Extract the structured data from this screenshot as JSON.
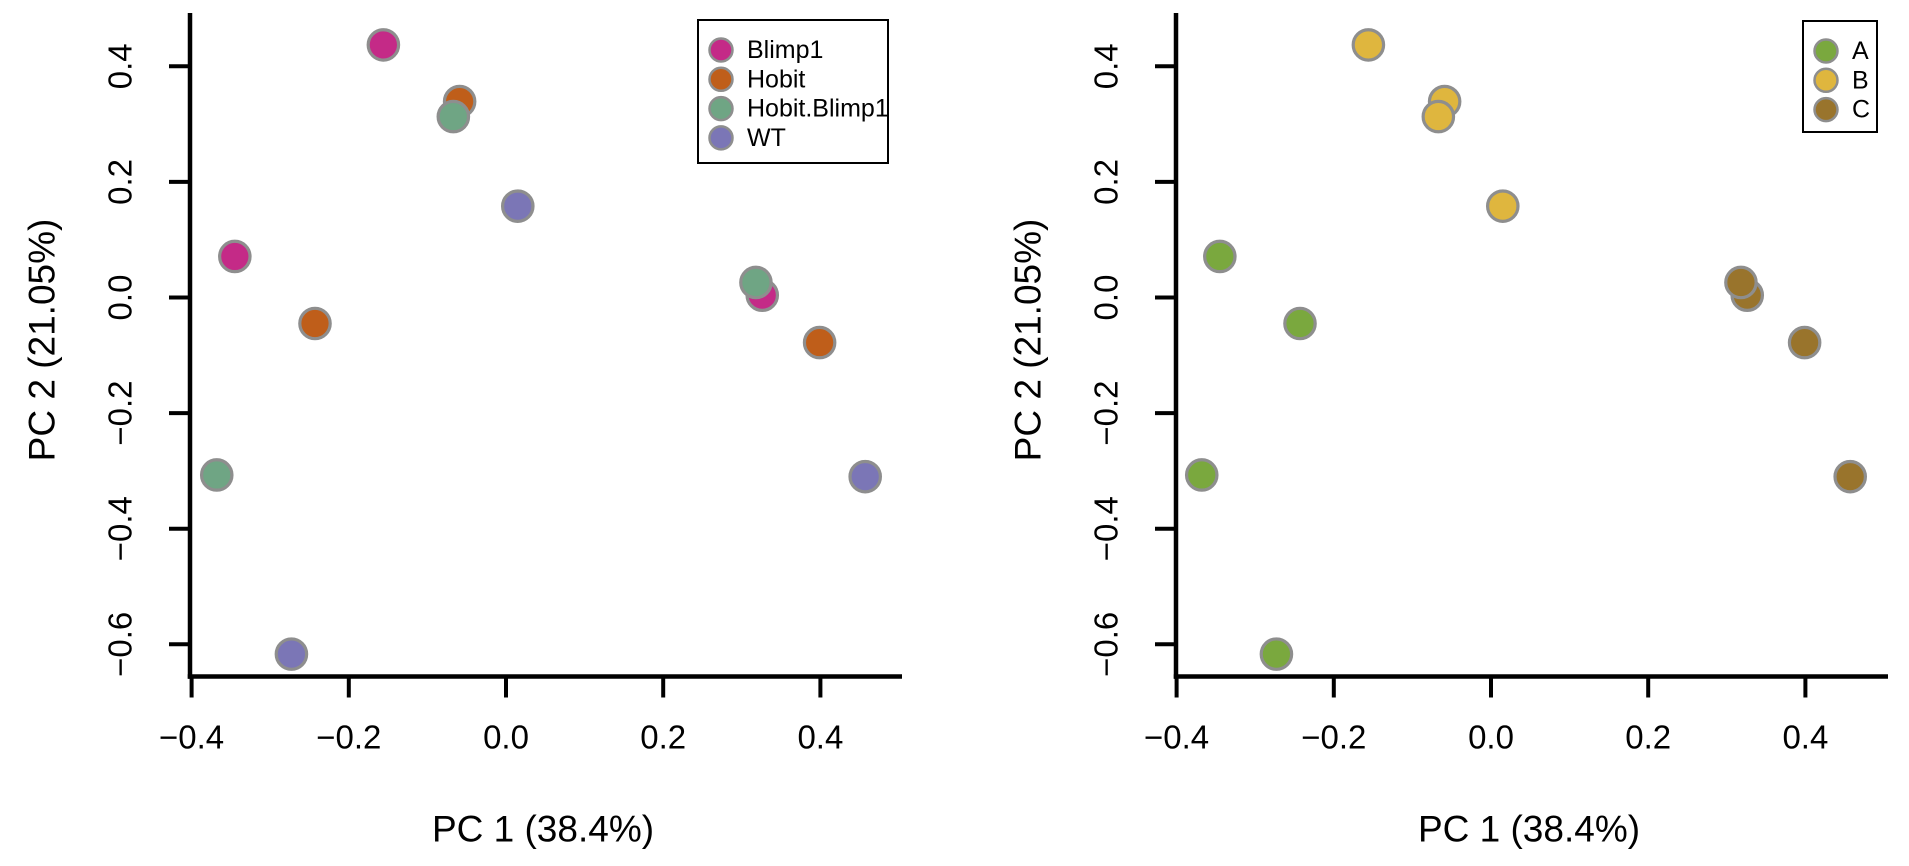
{
  "figure": {
    "background": "#ffffff",
    "axis_color": "#000000",
    "point_stroke_color": "#8E8E8E",
    "legend_border_color": "#000000"
  },
  "chart_data": [
    {
      "type": "scatter",
      "panel": "left",
      "title": "",
      "xlabel": "PC 1 (38.4%)",
      "ylabel": "PC 2 (21.05%)",
      "xlim": [
        -0.402,
        0.496
      ],
      "ylim": [
        -0.659,
        0.479
      ],
      "xticks": [
        -0.4,
        -0.2,
        0.0,
        0.2,
        0.4
      ],
      "yticks": [
        0.4,
        0.2,
        0.0,
        -0.2,
        -0.4,
        -0.6
      ],
      "grid": false,
      "legend": {
        "position": "top-right",
        "entries": [
          {
            "label": "Blimp1",
            "color": "#C42A87"
          },
          {
            "label": "Hobit",
            "color": "#BF5E1A"
          },
          {
            "label": "Hobit.Blimp1",
            "color": "#6FA584"
          },
          {
            "label": "WT",
            "color": "#7B76B6"
          }
        ]
      },
      "points": [
        {
          "x": -0.156,
          "y": 0.437,
          "group": "Blimp1"
        },
        {
          "x": -0.059,
          "y": 0.339,
          "group": "Hobit"
        },
        {
          "x": -0.067,
          "y": 0.313,
          "group": "Hobit.Blimp1"
        },
        {
          "x": 0.015,
          "y": 0.158,
          "group": "WT"
        },
        {
          "x": -0.345,
          "y": 0.071,
          "group": "Blimp1"
        },
        {
          "x": -0.243,
          "y": -0.045,
          "group": "Hobit"
        },
        {
          "x": 0.326,
          "y": 0.004,
          "group": "Blimp1"
        },
        {
          "x": 0.318,
          "y": 0.026,
          "group": "Hobit.Blimp1"
        },
        {
          "x": 0.399,
          "y": -0.078,
          "group": "Hobit"
        },
        {
          "x": -0.368,
          "y": -0.307,
          "group": "Hobit.Blimp1"
        },
        {
          "x": 0.457,
          "y": -0.31,
          "group": "WT"
        },
        {
          "x": -0.273,
          "y": -0.617,
          "group": "WT"
        }
      ]
    },
    {
      "type": "scatter",
      "panel": "right",
      "title": "",
      "xlabel": "PC 1 (38.4%)",
      "ylabel": "PC 2 (21.05%)",
      "xlim": [
        -0.402,
        0.496
      ],
      "ylim": [
        -0.659,
        0.479
      ],
      "xticks": [
        -0.4,
        -0.2,
        0.0,
        0.2,
        0.4
      ],
      "yticks": [
        0.4,
        0.2,
        0.0,
        -0.2,
        -0.4,
        -0.6
      ],
      "grid": false,
      "legend": {
        "position": "top-right",
        "entries": [
          {
            "label": "A",
            "color": "#7AA83E"
          },
          {
            "label": "B",
            "color": "#DFB63E"
          },
          {
            "label": "C",
            "color": "#99742C"
          }
        ]
      },
      "points": [
        {
          "x": -0.156,
          "y": 0.437,
          "group": "B"
        },
        {
          "x": -0.059,
          "y": 0.339,
          "group": "B"
        },
        {
          "x": -0.067,
          "y": 0.313,
          "group": "B"
        },
        {
          "x": 0.015,
          "y": 0.158,
          "group": "B"
        },
        {
          "x": -0.345,
          "y": 0.071,
          "group": "A"
        },
        {
          "x": -0.243,
          "y": -0.045,
          "group": "A"
        },
        {
          "x": 0.326,
          "y": 0.004,
          "group": "C"
        },
        {
          "x": 0.318,
          "y": 0.026,
          "group": "C"
        },
        {
          "x": 0.399,
          "y": -0.078,
          "group": "C"
        },
        {
          "x": -0.368,
          "y": -0.307,
          "group": "A"
        },
        {
          "x": 0.457,
          "y": -0.31,
          "group": "C"
        },
        {
          "x": -0.273,
          "y": -0.617,
          "group": "A"
        }
      ]
    }
  ]
}
